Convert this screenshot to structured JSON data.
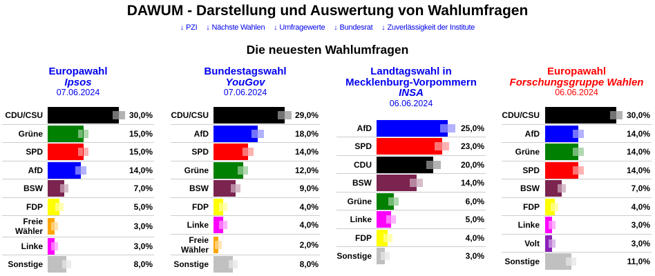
{
  "header": {
    "title": "DAWUM - Darstellung und Auswertung von Wahlumfragen",
    "nav_links": [
      {
        "icon": "arrow-down-icon",
        "glyph": "↓",
        "label": "PZI"
      },
      {
        "icon": "arrow-down-icon",
        "glyph": "↓",
        "label": "Nächste Wahlen"
      },
      {
        "icon": "arrow-down-icon",
        "glyph": "↓",
        "label": "Umfragewerte"
      },
      {
        "icon": "arrow-down-icon",
        "glyph": "↓",
        "label": "Bundesrat"
      },
      {
        "icon": "arrow-down-icon",
        "glyph": "↓",
        "label": "Zuverlässigkeit der Institute"
      }
    ],
    "link_color": "#0000ee",
    "section_title": "Die neuesten Wahlumfragen"
  },
  "polls": [
    {
      "election": "Europawahl",
      "institute": "Ipsos",
      "date": "07.06.2024",
      "title_color": "#0000ee",
      "results": [
        {
          "party": "CDU/CSU",
          "value": 30.0,
          "display": "30,0%",
          "color": "#000000"
        },
        {
          "party": "Grüne",
          "value": 15.0,
          "display": "15,0%",
          "color": "#008000"
        },
        {
          "party": "SPD",
          "value": 15.0,
          "display": "15,0%",
          "color": "#ff0000"
        },
        {
          "party": "AfD",
          "value": 14.0,
          "display": "14,0%",
          "color": "#0000ff"
        },
        {
          "party": "BSW",
          "value": 7.0,
          "display": "7,0%",
          "color": "#7b2450"
        },
        {
          "party": "FDP",
          "value": 5.0,
          "display": "5,0%",
          "color": "#ffff00"
        },
        {
          "party": "Freie Wähler",
          "value": 3.0,
          "display": "3,0%",
          "color": "#ffa500"
        },
        {
          "party": "Linke",
          "value": 3.0,
          "display": "3,0%",
          "color": "#ff00ff"
        },
        {
          "party": "Sonstige",
          "value": 8.0,
          "display": "8,0%",
          "color": "#c0c0c0"
        }
      ]
    },
    {
      "election": "Bundestagswahl",
      "institute": "YouGov",
      "date": "07.06.2024",
      "title_color": "#0000ee",
      "results": [
        {
          "party": "CDU/CSU",
          "value": 29.0,
          "display": "29,0%",
          "color": "#000000"
        },
        {
          "party": "AfD",
          "value": 18.0,
          "display": "18,0%",
          "color": "#0000ff"
        },
        {
          "party": "SPD",
          "value": 14.0,
          "display": "14,0%",
          "color": "#ff0000"
        },
        {
          "party": "Grüne",
          "value": 12.0,
          "display": "12,0%",
          "color": "#008000"
        },
        {
          "party": "BSW",
          "value": 9.0,
          "display": "9,0%",
          "color": "#7b2450"
        },
        {
          "party": "FDP",
          "value": 4.0,
          "display": "4,0%",
          "color": "#ffff00"
        },
        {
          "party": "Linke",
          "value": 4.0,
          "display": "4,0%",
          "color": "#ff00ff"
        },
        {
          "party": "Freie Wähler",
          "value": 2.0,
          "display": "2,0%",
          "color": "#ffa500"
        },
        {
          "party": "Sonstige",
          "value": 8.0,
          "display": "8,0%",
          "color": "#c0c0c0"
        }
      ]
    },
    {
      "election": "Landtagswahl in Mecklenburg-Vorpommern",
      "institute": "INSA",
      "date": "06.06.2024",
      "title_color": "#0000ee",
      "results": [
        {
          "party": "AfD",
          "value": 25.0,
          "display": "25,0%",
          "color": "#0000ff"
        },
        {
          "party": "SPD",
          "value": 23.0,
          "display": "23,0%",
          "color": "#ff0000"
        },
        {
          "party": "CDU",
          "value": 20.0,
          "display": "20,0%",
          "color": "#000000"
        },
        {
          "party": "BSW",
          "value": 14.0,
          "display": "14,0%",
          "color": "#7b2450"
        },
        {
          "party": "Grüne",
          "value": 6.0,
          "display": "6,0%",
          "color": "#008000"
        },
        {
          "party": "Linke",
          "value": 5.0,
          "display": "5,0%",
          "color": "#ff00ff"
        },
        {
          "party": "FDP",
          "value": 4.0,
          "display": "4,0%",
          "color": "#ffff00"
        },
        {
          "party": "Sonstige",
          "value": 3.0,
          "display": "3,0%",
          "color": "#c0c0c0"
        }
      ]
    },
    {
      "election": "Europawahl",
      "institute": "Forschungsgruppe Wahlen",
      "date": "06.06.2024",
      "title_color": "#ff0000",
      "results": [
        {
          "party": "CDU/CSU",
          "value": 30.0,
          "display": "30,0%",
          "color": "#000000"
        },
        {
          "party": "AfD",
          "value": 14.0,
          "display": "14,0%",
          "color": "#0000ff"
        },
        {
          "party": "Grüne",
          "value": 14.0,
          "display": "14,0%",
          "color": "#008000"
        },
        {
          "party": "SPD",
          "value": 14.0,
          "display": "14,0%",
          "color": "#ff0000"
        },
        {
          "party": "BSW",
          "value": 7.0,
          "display": "7,0%",
          "color": "#7b2450"
        },
        {
          "party": "FDP",
          "value": 4.0,
          "display": "4,0%",
          "color": "#ffff00"
        },
        {
          "party": "Linke",
          "value": 3.0,
          "display": "3,0%",
          "color": "#ff00ff"
        },
        {
          "party": "Volt",
          "value": 3.0,
          "display": "3,0%",
          "color": "#8c20b8"
        },
        {
          "party": "Sonstige",
          "value": 11.0,
          "display": "11,0%",
          "color": "#c0c0c0"
        }
      ]
    }
  ]
}
